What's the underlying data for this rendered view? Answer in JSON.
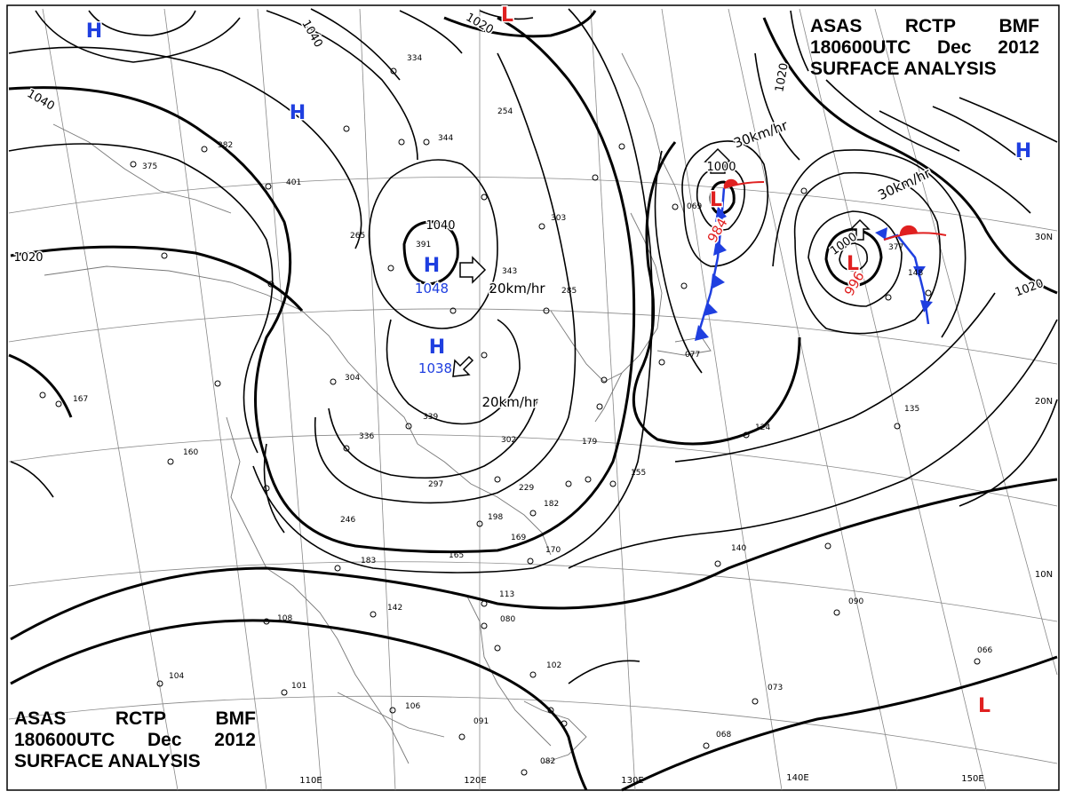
{
  "title": {
    "agency": "ASAS",
    "station": "RCTP",
    "source": "BMF",
    "time": "180600UTC",
    "month": "Dec",
    "year": "2012",
    "product": "SURFACE ANALYSIS"
  },
  "pressure_centers": [
    {
      "type": "H",
      "label": "",
      "color": "#1f3fe0",
      "icon": "high-pressure-icon"
    },
    {
      "type": "H",
      "label": "",
      "color": "#1f3fe0",
      "icon": "high-pressure-icon"
    },
    {
      "type": "H",
      "label": "1048",
      "color": "#1f3fe0",
      "icon": "high-pressure-icon"
    },
    {
      "type": "H",
      "label": "1038",
      "color": "#1f3fe0",
      "icon": "high-pressure-icon"
    },
    {
      "type": "H",
      "label": "",
      "color": "#1f3fe0",
      "icon": "high-pressure-icon"
    },
    {
      "type": "L",
      "label": "984",
      "color": "#e02020",
      "icon": "low-pressure-icon"
    },
    {
      "type": "L",
      "label": "996",
      "color": "#e02020",
      "icon": "low-pressure-icon"
    },
    {
      "type": "L",
      "label": "",
      "color": "#e02020",
      "icon": "low-pressure-icon"
    },
    {
      "type": "L",
      "label": "",
      "color": "#e02020",
      "icon": "low-pressure-icon"
    }
  ],
  "isobar_labels": [
    "1040",
    "1020",
    "1040",
    "1020",
    "1040",
    "1020",
    "1000",
    "1000",
    "1020"
  ],
  "motion_labels": [
    "20km/hr",
    "20km/hr",
    "30km/hr",
    "30km/hr"
  ],
  "longitude_labels": [
    "110E",
    "120E",
    "130E",
    "140E",
    "150E"
  ],
  "latitude_labels": [
    "30N",
    "20N",
    "10N"
  ],
  "front_colors": {
    "cold": "#1f3fe0",
    "warm": "#e02020"
  },
  "station_values": [
    "334",
    "254",
    "344",
    "382",
    "375",
    "401",
    "303",
    "343",
    "391",
    "304",
    "339",
    "336",
    "297",
    "302",
    "229",
    "246",
    "183",
    "165",
    "113",
    "142",
    "108",
    "104",
    "101",
    "106",
    "091",
    "082",
    "080",
    "102",
    "124",
    "135",
    "140",
    "090",
    "073",
    "068",
    "066",
    "179",
    "155",
    "182",
    "169",
    "170",
    "198",
    "077",
    "069",
    "148",
    "377",
    "167",
    "160",
    "285",
    "265"
  ]
}
